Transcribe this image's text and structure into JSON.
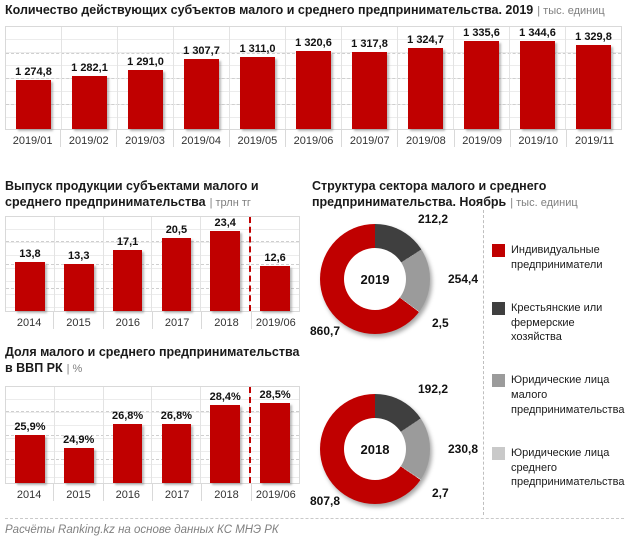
{
  "colors": {
    "bar": "#C00000",
    "slice_dark": "#3F3F3F",
    "slice_mid": "#9B9B9B",
    "slice_light": "#C9C9C9",
    "unit_text": "#7F7F7F"
  },
  "titles": {
    "main": "Количество действующих субъектов малого и среднего предпринимательства. 2019",
    "main_unit": "| тыс. единиц",
    "output": "Выпуск продукции субъектами малого и среднего предпринимательства",
    "output_unit": "| трлн тг",
    "share": "Доля малого и среднего предпринимательства в ВВП РК",
    "share_unit": "| %",
    "structure": "Структура сектора малого и среднего предпринимательства. Ноябрь",
    "structure_unit": "| тыс. единиц"
  },
  "legend": {
    "items": [
      {
        "label": "Индивидуальные предприниматели",
        "color": "#C00000"
      },
      {
        "label": "Крестьянские или фермерские хозяйства",
        "color": "#3F3F3F"
      },
      {
        "label": "Юридические лица малого предпринимательства",
        "color": "#9B9B9B"
      },
      {
        "label": "Юридические лица среднего предпринимательства",
        "color": "#C9C9C9"
      }
    ]
  },
  "footer": {
    "text": "Расчёты Ranking.kz на основе данных КС МНЭ РК"
  },
  "chart_data": [
    {
      "type": "bar",
      "title": "Количество действующих субъектов малого и среднего предпринимательства. 2019",
      "ylabel": "тыс. единиц",
      "categories": [
        "2019/01",
        "2019/02",
        "2019/03",
        "2019/04",
        "2019/05",
        "2019/06",
        "2019/07",
        "2019/08",
        "2019/09",
        "2019/10",
        "2019/11"
      ],
      "values": [
        1274.8,
        1282.1,
        1291.0,
        1307.7,
        1311.0,
        1320.6,
        1317.8,
        1324.7,
        1335.6,
        1344.6,
        1329.8
      ],
      "labels": [
        "1 274,8",
        "1 282,1",
        "1 291,0",
        "1 307,7",
        "1 311,0",
        "1 320,6",
        "1 317,8",
        "1 324,7",
        "1 335,6",
        "1 344,6",
        "1 329,8"
      ],
      "ylim": [
        1200,
        1360
      ],
      "grid": true,
      "legend_position": "none"
    },
    {
      "type": "bar",
      "title": "Выпуск продукции субъектами малого и среднего предпринимательства",
      "ylabel": "трлн тг",
      "categories": [
        "2014",
        "2015",
        "2016",
        "2017",
        "2018",
        "2019/06"
      ],
      "values": [
        13.8,
        13.3,
        17.1,
        20.5,
        23.4,
        12.6
      ],
      "labels": [
        "13,8",
        "13,3",
        "17,1",
        "20,5",
        "23,4",
        "12,6"
      ],
      "ylim": [
        0,
        27
      ],
      "grid": true,
      "divider_before_last": true,
      "legend_position": "none"
    },
    {
      "type": "bar",
      "title": "Доля малого и среднего предпринимательства в ВВП РК",
      "ylabel": "%",
      "categories": [
        "2014",
        "2015",
        "2016",
        "2017",
        "2018",
        "2019/06"
      ],
      "values": [
        25.9,
        24.9,
        26.8,
        26.8,
        28.4,
        28.5
      ],
      "labels": [
        "25,9%",
        "24,9%",
        "26,8%",
        "26,8%",
        "28,4%",
        "28,5%"
      ],
      "ylim": [
        22,
        30
      ],
      "grid": true,
      "divider_before_last": true,
      "legend_position": "none"
    },
    {
      "type": "pie",
      "title": "Структура сектора малого и среднего предпринимательства. Ноябрь 2019",
      "center_label": "2019",
      "slices": [
        {
          "label": "Крестьянские или фермерские хозяйства",
          "value": 212.2,
          "display": "212,2",
          "color": "#3F3F3F"
        },
        {
          "label": "Юридические лица малого предпринимательства",
          "value": 254.4,
          "display": "254,4",
          "color": "#9B9B9B"
        },
        {
          "label": "Юридические лица среднего предпринимательства",
          "value": 2.5,
          "display": "2,5",
          "color": "#C9C9C9"
        },
        {
          "label": "Индивидуальные предприниматели",
          "value": 860.7,
          "display": "860,7",
          "color": "#C00000"
        }
      ]
    },
    {
      "type": "pie",
      "title": "Структура сектора малого и среднего предпринимательства. Ноябрь 2018",
      "center_label": "2018",
      "slices": [
        {
          "label": "Крестьянские или фермерские хозяйства",
          "value": 192.2,
          "display": "192,2",
          "color": "#3F3F3F"
        },
        {
          "label": "Юридические лица малого предпринимательства",
          "value": 230.8,
          "display": "230,8",
          "color": "#9B9B9B"
        },
        {
          "label": "Юридические лица среднего предпринимательства",
          "value": 2.7,
          "display": "2,7",
          "color": "#C9C9C9"
        },
        {
          "label": "Индивидуальные предприниматели",
          "value": 807.8,
          "display": "807,8",
          "color": "#C00000"
        }
      ]
    }
  ]
}
